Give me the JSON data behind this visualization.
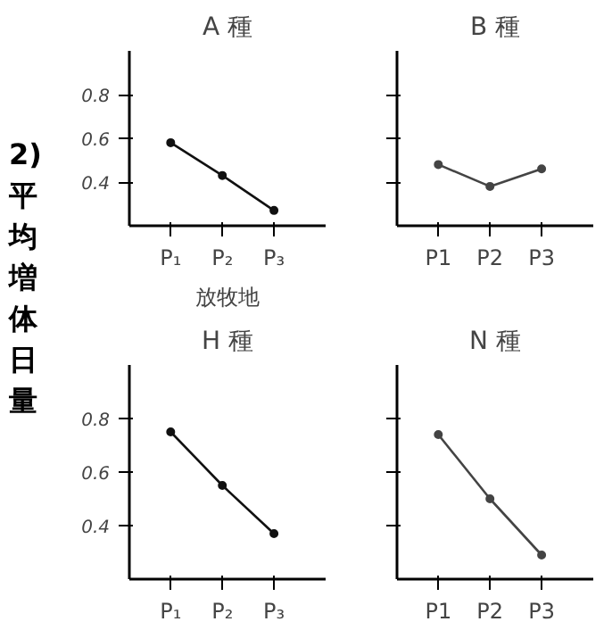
{
  "chart_data": [
    {
      "type": "line",
      "title": "A 種",
      "ylabel": "2) 平均増体日量",
      "xlabel": "放牧地",
      "categories": [
        "P₁",
        "P₂",
        "P₃"
      ],
      "values": [
        0.58,
        0.43,
        0.27
      ],
      "color": "#111111",
      "marker": "circle",
      "ylim": [
        0.2,
        1.0
      ],
      "yticks": [
        0.8,
        0.6,
        0.4
      ],
      "grid": false
    },
    {
      "type": "line",
      "title": "B 種",
      "categories": [
        "P1",
        "P2",
        "P3"
      ],
      "values": [
        0.48,
        0.38,
        0.46
      ],
      "color": "#444444",
      "marker": "circle",
      "ylim": [
        0.2,
        1.0
      ],
      "yticks": [
        {
          "value": 0.8,
          "label": null
        },
        {
          "value": 0.6,
          "label": null
        },
        {
          "value": 0.4,
          "label": null
        }
      ],
      "tick_labels": "x",
      "grid": false
    },
    {
      "type": "line",
      "title": "H 種",
      "categories": [
        "P₁",
        "P₂",
        "P₃"
      ],
      "values": [
        0.75,
        0.55,
        0.37
      ],
      "color": "#111111",
      "marker": "circle",
      "ylim": [
        0.2,
        1.0
      ],
      "yticks": [
        0.8,
        0.6,
        0.4
      ],
      "grid": false
    },
    {
      "type": "line",
      "title": "N 種",
      "categories": [
        "P1",
        "P2",
        "P3"
      ],
      "values": [
        0.74,
        0.5,
        0.29
      ],
      "color": "#444444",
      "marker": "circle",
      "ylim": [
        0.2,
        1.0
      ],
      "yticks": [
        {
          "value": 0.8,
          "label": null
        },
        {
          "value": 0.6,
          "label": null
        },
        {
          "value": 0.4,
          "label": null
        }
      ],
      "tick_labels": "x",
      "grid": false
    }
  ]
}
